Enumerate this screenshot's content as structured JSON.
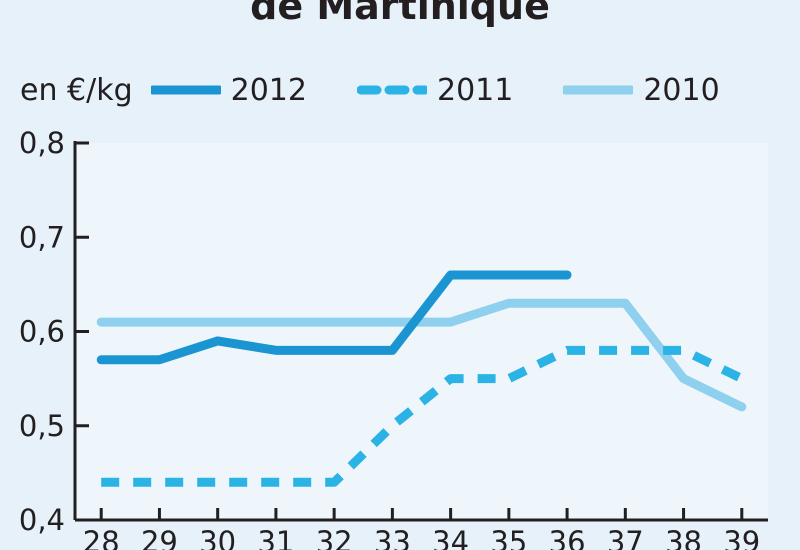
{
  "chart_data": {
    "type": "line",
    "title": "de Martinique",
    "unit_label": "en €/kg",
    "x": [
      28,
      29,
      30,
      31,
      32,
      33,
      34,
      35,
      36,
      37,
      38,
      39
    ],
    "x_tick_labels": [
      "28",
      "29",
      "30",
      "31",
      "32",
      "33",
      "34",
      "35",
      "36",
      "37",
      "38",
      "39"
    ],
    "y_tick_labels": [
      "0,8",
      "0,7",
      "0,6",
      "0,5",
      "0,4"
    ],
    "y_ticks": [
      0.8,
      0.7,
      0.6,
      0.5,
      0.4
    ],
    "ylim": [
      0.4,
      0.8
    ],
    "xlim": [
      28,
      39
    ],
    "grid": false,
    "legend_position": "top",
    "series": [
      {
        "name": "2012",
        "style": "solid",
        "color": "#1b95d2",
        "x": [
          28,
          29,
          30,
          31,
          32,
          33,
          34,
          35,
          36
        ],
        "y": [
          0.57,
          0.57,
          0.59,
          0.58,
          0.58,
          0.58,
          0.66,
          0.66,
          0.66
        ]
      },
      {
        "name": "2011",
        "style": "dashed",
        "color": "#2ab3e4",
        "x": [
          28,
          29,
          30,
          31,
          32,
          33,
          34,
          35,
          36,
          37,
          38,
          39
        ],
        "y": [
          0.44,
          0.44,
          0.44,
          0.44,
          0.44,
          0.5,
          0.55,
          0.55,
          0.58,
          0.58,
          0.58,
          0.55
        ]
      },
      {
        "name": "2010",
        "style": "solid",
        "color": "#8fd0ef",
        "x": [
          28,
          29,
          30,
          31,
          32,
          33,
          34,
          35,
          36,
          37,
          38,
          39
        ],
        "y": [
          0.61,
          0.61,
          0.61,
          0.61,
          0.61,
          0.61,
          0.61,
          0.63,
          0.63,
          0.63,
          0.55,
          0.52
        ]
      }
    ]
  }
}
